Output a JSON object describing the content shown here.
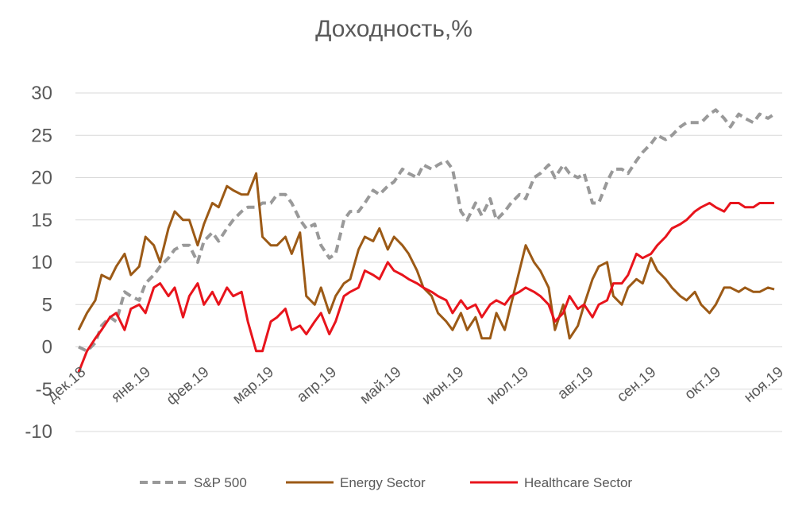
{
  "chart_data": {
    "type": "line",
    "title": "Доходность,%",
    "xlabel": "",
    "ylabel": "",
    "ylim": [
      -10,
      30
    ],
    "yticks": [
      30,
      25,
      20,
      15,
      10,
      5,
      0,
      -5,
      -10
    ],
    "grid": true,
    "legend": "bottom",
    "x_start": "2018-12-31",
    "x_end": "2019-11-29",
    "x_ticks": [
      {
        "date": "2018-12-31",
        "label": "дек.18"
      },
      {
        "date": "2019-01-31",
        "label": "янв.19"
      },
      {
        "date": "2019-02-28",
        "label": "фев.19"
      },
      {
        "date": "2019-03-31",
        "label": "мар.19"
      },
      {
        "date": "2019-04-30",
        "label": "апр.19"
      },
      {
        "date": "2019-05-31",
        "label": "май.19"
      },
      {
        "date": "2019-06-30",
        "label": "июн.19"
      },
      {
        "date": "2019-07-31",
        "label": "июл.19"
      },
      {
        "date": "2019-08-31",
        "label": "авг.19"
      },
      {
        "date": "2019-09-30",
        "label": "сен.19"
      },
      {
        "date": "2019-10-31",
        "label": "окт.19"
      },
      {
        "date": "2019-11-30",
        "label": "ноя.19"
      }
    ],
    "series": [
      {
        "name": "S&P 500",
        "color": "#999999",
        "style": "dashed",
        "x": [
          "2018-12-31",
          "2019-01-04",
          "2019-01-08",
          "2019-01-11",
          "2019-01-15",
          "2019-01-18",
          "2019-01-22",
          "2019-01-25",
          "2019-01-29",
          "2019-02-01",
          "2019-02-05",
          "2019-02-08",
          "2019-02-12",
          "2019-02-15",
          "2019-02-19",
          "2019-02-22",
          "2019-02-26",
          "2019-03-01",
          "2019-03-05",
          "2019-03-08",
          "2019-03-12",
          "2019-03-15",
          "2019-03-19",
          "2019-03-22",
          "2019-03-26",
          "2019-03-29",
          "2019-04-02",
          "2019-04-05",
          "2019-04-09",
          "2019-04-12",
          "2019-04-16",
          "2019-04-19",
          "2019-04-23",
          "2019-04-26",
          "2019-04-30",
          "2019-05-03",
          "2019-05-07",
          "2019-05-10",
          "2019-05-14",
          "2019-05-17",
          "2019-05-21",
          "2019-05-24",
          "2019-05-28",
          "2019-05-31",
          "2019-06-04",
          "2019-06-07",
          "2019-06-11",
          "2019-06-14",
          "2019-06-18",
          "2019-06-21",
          "2019-06-25",
          "2019-06-28",
          "2019-07-02",
          "2019-07-05",
          "2019-07-09",
          "2019-07-12",
          "2019-07-16",
          "2019-07-19",
          "2019-07-23",
          "2019-07-26",
          "2019-07-30",
          "2019-08-02",
          "2019-08-06",
          "2019-08-09",
          "2019-08-13",
          "2019-08-16",
          "2019-08-20",
          "2019-08-23",
          "2019-08-27",
          "2019-08-30",
          "2019-09-03",
          "2019-09-06",
          "2019-09-10",
          "2019-09-13",
          "2019-09-17",
          "2019-09-20",
          "2019-09-24",
          "2019-09-27",
          "2019-10-01",
          "2019-10-04",
          "2019-10-08",
          "2019-10-11",
          "2019-10-15",
          "2019-10-18",
          "2019-10-22",
          "2019-10-25",
          "2019-10-29",
          "2019-11-01",
          "2019-11-05",
          "2019-11-08",
          "2019-11-12",
          "2019-11-15",
          "2019-11-19",
          "2019-11-22",
          "2019-11-26",
          "2019-11-29"
        ],
        "values": [
          0,
          -0.5,
          0.5,
          2.5,
          3.5,
          3,
          6.5,
          6,
          5.5,
          7.5,
          8.5,
          9.5,
          10.5,
          11.5,
          12,
          12,
          10,
          12.5,
          13.5,
          12.5,
          14,
          15,
          16,
          16.5,
          16.5,
          17,
          17,
          18,
          18,
          17,
          15,
          14,
          14.5,
          12,
          10.5,
          11,
          15,
          16,
          16,
          17,
          18.5,
          18,
          19,
          19.5,
          21,
          20.5,
          20,
          21.5,
          21,
          21.5,
          22,
          21,
          16,
          15,
          17,
          15.5,
          17.5,
          15,
          16,
          17,
          18,
          17.5,
          20,
          20.5,
          21.5,
          20,
          21.5,
          20.5,
          20,
          20.5,
          17,
          17,
          19.5,
          21,
          21,
          20.5,
          22,
          23,
          24,
          25,
          24.5,
          25,
          26,
          26.5,
          26.5,
          26.5,
          27.5,
          28,
          27,
          26,
          27.5,
          27,
          26.5,
          27.5,
          27,
          27.5
        ]
      },
      {
        "name": "Energy Sector",
        "color": "#9c5a16",
        "style": "solid",
        "x": [
          "2018-12-31",
          "2019-01-04",
          "2019-01-08",
          "2019-01-11",
          "2019-01-15",
          "2019-01-18",
          "2019-01-22",
          "2019-01-25",
          "2019-01-29",
          "2019-02-01",
          "2019-02-05",
          "2019-02-08",
          "2019-02-12",
          "2019-02-15",
          "2019-02-19",
          "2019-02-22",
          "2019-02-26",
          "2019-03-01",
          "2019-03-05",
          "2019-03-08",
          "2019-03-12",
          "2019-03-15",
          "2019-03-19",
          "2019-03-22",
          "2019-03-26",
          "2019-03-29",
          "2019-04-02",
          "2019-04-05",
          "2019-04-09",
          "2019-04-12",
          "2019-04-16",
          "2019-04-19",
          "2019-04-23",
          "2019-04-26",
          "2019-04-30",
          "2019-05-03",
          "2019-05-07",
          "2019-05-10",
          "2019-05-14",
          "2019-05-17",
          "2019-05-21",
          "2019-05-24",
          "2019-05-28",
          "2019-05-31",
          "2019-06-04",
          "2019-06-07",
          "2019-06-11",
          "2019-06-14",
          "2019-06-18",
          "2019-06-21",
          "2019-06-25",
          "2019-06-28",
          "2019-07-02",
          "2019-07-05",
          "2019-07-09",
          "2019-07-12",
          "2019-07-16",
          "2019-07-19",
          "2019-07-23",
          "2019-07-26",
          "2019-07-30",
          "2019-08-02",
          "2019-08-06",
          "2019-08-09",
          "2019-08-13",
          "2019-08-16",
          "2019-08-20",
          "2019-08-23",
          "2019-08-27",
          "2019-08-30",
          "2019-09-03",
          "2019-09-06",
          "2019-09-10",
          "2019-09-13",
          "2019-09-17",
          "2019-09-20",
          "2019-09-24",
          "2019-09-27",
          "2019-10-01",
          "2019-10-04",
          "2019-10-08",
          "2019-10-11",
          "2019-10-15",
          "2019-10-18",
          "2019-10-22",
          "2019-10-25",
          "2019-10-29",
          "2019-11-01",
          "2019-11-05",
          "2019-11-08",
          "2019-11-12",
          "2019-11-15",
          "2019-11-19",
          "2019-11-22",
          "2019-11-26",
          "2019-11-29"
        ],
        "values": [
          2,
          4,
          5.5,
          8.5,
          8,
          9.5,
          11,
          8.5,
          9.5,
          13,
          12,
          10,
          14,
          16,
          15,
          15,
          12,
          14.5,
          17,
          16.5,
          19,
          18.5,
          18,
          18,
          20.5,
          13,
          12,
          12,
          13,
          11,
          13.5,
          6,
          5,
          7,
          4,
          6,
          7.5,
          8,
          11.5,
          13,
          12.5,
          14,
          11.5,
          13,
          12,
          11,
          9,
          7,
          6,
          4,
          3,
          2,
          4,
          2,
          3.5,
          1,
          1,
          4,
          2,
          5,
          9,
          12,
          10,
          9,
          7,
          2,
          5,
          1,
          2.5,
          5,
          8,
          9.5,
          10,
          6,
          5,
          7,
          8,
          7.5,
          10.5,
          9,
          8,
          7,
          6,
          5.5,
          6.5,
          5,
          4,
          5,
          7,
          7,
          6.5,
          7,
          6.5,
          6.5,
          7,
          6.8
        ]
      },
      {
        "name": "Healthcare Sector",
        "color": "#e8141c",
        "style": "solid",
        "x": [
          "2018-12-31",
          "2019-01-04",
          "2019-01-08",
          "2019-01-11",
          "2019-01-15",
          "2019-01-18",
          "2019-01-22",
          "2019-01-25",
          "2019-01-29",
          "2019-02-01",
          "2019-02-05",
          "2019-02-08",
          "2019-02-12",
          "2019-02-15",
          "2019-02-19",
          "2019-02-22",
          "2019-02-26",
          "2019-03-01",
          "2019-03-05",
          "2019-03-08",
          "2019-03-12",
          "2019-03-15",
          "2019-03-19",
          "2019-03-22",
          "2019-03-26",
          "2019-03-29",
          "2019-04-02",
          "2019-04-05",
          "2019-04-09",
          "2019-04-12",
          "2019-04-16",
          "2019-04-19",
          "2019-04-23",
          "2019-04-26",
          "2019-04-30",
          "2019-05-03",
          "2019-05-07",
          "2019-05-10",
          "2019-05-14",
          "2019-05-17",
          "2019-05-21",
          "2019-05-24",
          "2019-05-28",
          "2019-05-31",
          "2019-06-04",
          "2019-06-07",
          "2019-06-11",
          "2019-06-14",
          "2019-06-18",
          "2019-06-21",
          "2019-06-25",
          "2019-06-28",
          "2019-07-02",
          "2019-07-05",
          "2019-07-09",
          "2019-07-12",
          "2019-07-16",
          "2019-07-19",
          "2019-07-23",
          "2019-07-26",
          "2019-07-30",
          "2019-08-02",
          "2019-08-06",
          "2019-08-09",
          "2019-08-13",
          "2019-08-16",
          "2019-08-20",
          "2019-08-23",
          "2019-08-27",
          "2019-08-30",
          "2019-09-03",
          "2019-09-06",
          "2019-09-10",
          "2019-09-13",
          "2019-09-17",
          "2019-09-20",
          "2019-09-24",
          "2019-09-27",
          "2019-10-01",
          "2019-10-04",
          "2019-10-08",
          "2019-10-11",
          "2019-10-15",
          "2019-10-18",
          "2019-10-22",
          "2019-10-25",
          "2019-10-29",
          "2019-11-01",
          "2019-11-05",
          "2019-11-08",
          "2019-11-12",
          "2019-11-15",
          "2019-11-19",
          "2019-11-22",
          "2019-11-26",
          "2019-11-29"
        ],
        "values": [
          -3,
          -0.5,
          1,
          2,
          3.5,
          4,
          2,
          4.5,
          5,
          4,
          7,
          7.5,
          6,
          7,
          3.5,
          6,
          7.5,
          5,
          6.5,
          5,
          7,
          6,
          6.5,
          3,
          -0.5,
          -0.5,
          3,
          3.5,
          4.5,
          2,
          2.5,
          1.5,
          3,
          4,
          1.5,
          3,
          6,
          6.5,
          7,
          9,
          8.5,
          8,
          10,
          9,
          8.5,
          8,
          7.5,
          7,
          6.5,
          6,
          5.5,
          4,
          5.5,
          4.5,
          5,
          3.5,
          5,
          5.5,
          5,
          6,
          6.5,
          7,
          6.5,
          6,
          5,
          3,
          4,
          6,
          4.5,
          5,
          3.5,
          5,
          5.5,
          7.5,
          7.5,
          8.5,
          11,
          10.5,
          11,
          12,
          13,
          14,
          14.5,
          15,
          16,
          16.5,
          17,
          16.5,
          16,
          17,
          17,
          16.5,
          16.5,
          17,
          17,
          17
        ]
      }
    ]
  }
}
